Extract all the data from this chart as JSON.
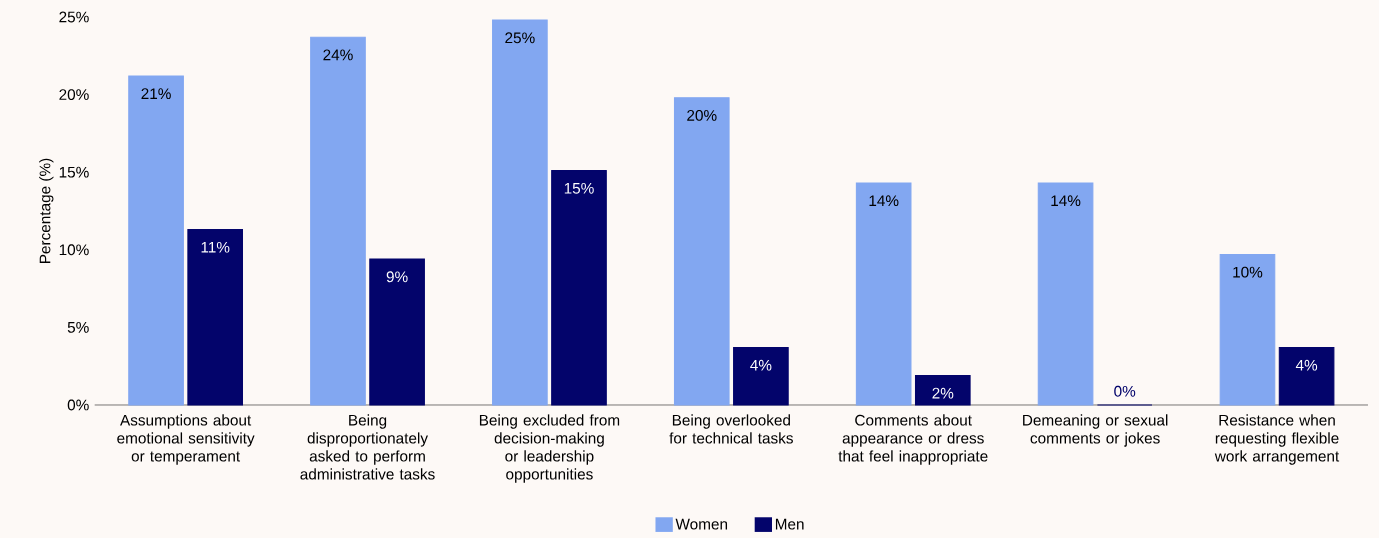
{
  "chart_data": {
    "type": "bar",
    "categories": [
      "Assumptions about emotional sensitivity or temperament",
      "Being disproportionately asked to perform administrative tasks",
      "Being excluded from decision-making or leadership opportunities",
      "Being overlooked for technical tasks",
      "Comments about appearance or dress that feel inappropriate",
      "Demeaning or sexual comments or jokes",
      "Resistance when requesting flexible work arrangement"
    ],
    "series": [
      {
        "name": "Women",
        "color": "#82a7f1",
        "values": [
          21.2,
          23.7,
          24.8,
          19.8,
          14.3,
          14.3,
          9.7
        ],
        "value_labels": [
          "21%",
          "24%",
          "25%",
          "20%",
          "14%",
          "14%",
          "10%"
        ]
      },
      {
        "name": "Men",
        "color": "#03046b",
        "values": [
          11.3,
          9.4,
          15.1,
          3.7,
          1.9,
          0,
          3.7
        ],
        "value_labels": [
          "11%",
          "9%",
          "15%",
          "4%",
          "2%",
          "0%",
          "4%"
        ]
      }
    ],
    "ylabel": "Percentage (%)",
    "ylim": [
      0,
      25
    ],
    "yticks": [
      {
        "value": 0,
        "label": "0%"
      },
      {
        "value": 5,
        "label": "5%"
      },
      {
        "value": 10,
        "label": "10%"
      },
      {
        "value": 15,
        "label": "15%"
      },
      {
        "value": 20,
        "label": "20%"
      },
      {
        "value": 25,
        "label": "25%"
      }
    ],
    "legend": "bottom"
  }
}
